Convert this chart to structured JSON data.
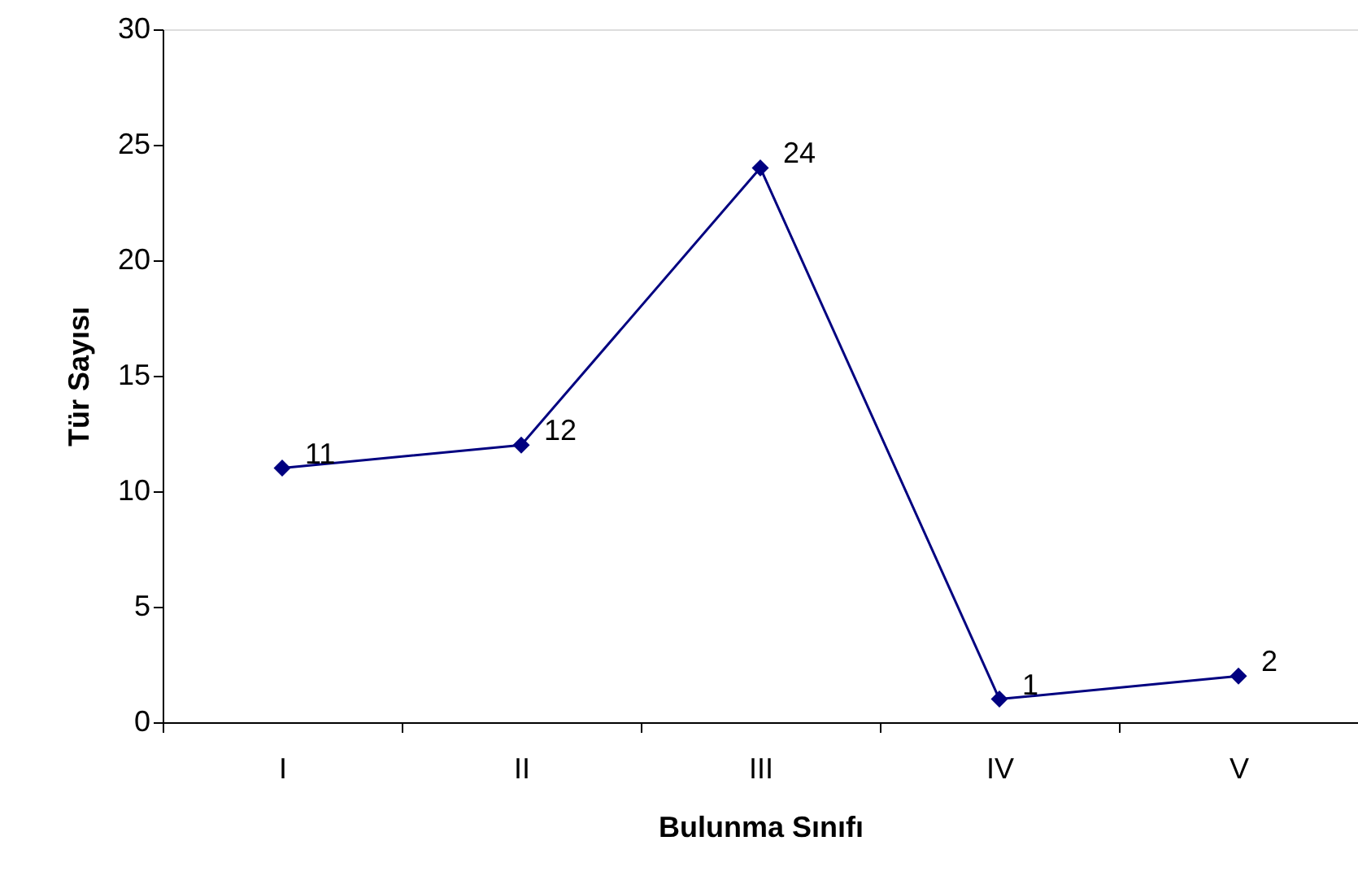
{
  "chart_data": {
    "type": "line",
    "xlabel": "Bulunma Sınıfı",
    "ylabel": "Tür Sayısı",
    "categories": [
      "I",
      "II",
      "III",
      "IV",
      "V"
    ],
    "series": [
      {
        "color": "#000080",
        "values": [
          11,
          12,
          24,
          1,
          2
        ]
      }
    ],
    "ylim": [
      0,
      30
    ],
    "yticks": [
      0,
      5,
      10,
      15,
      20,
      25,
      30
    ],
    "grid": false,
    "marker": "diamond",
    "line_style": "solid",
    "data_labels": true
  }
}
